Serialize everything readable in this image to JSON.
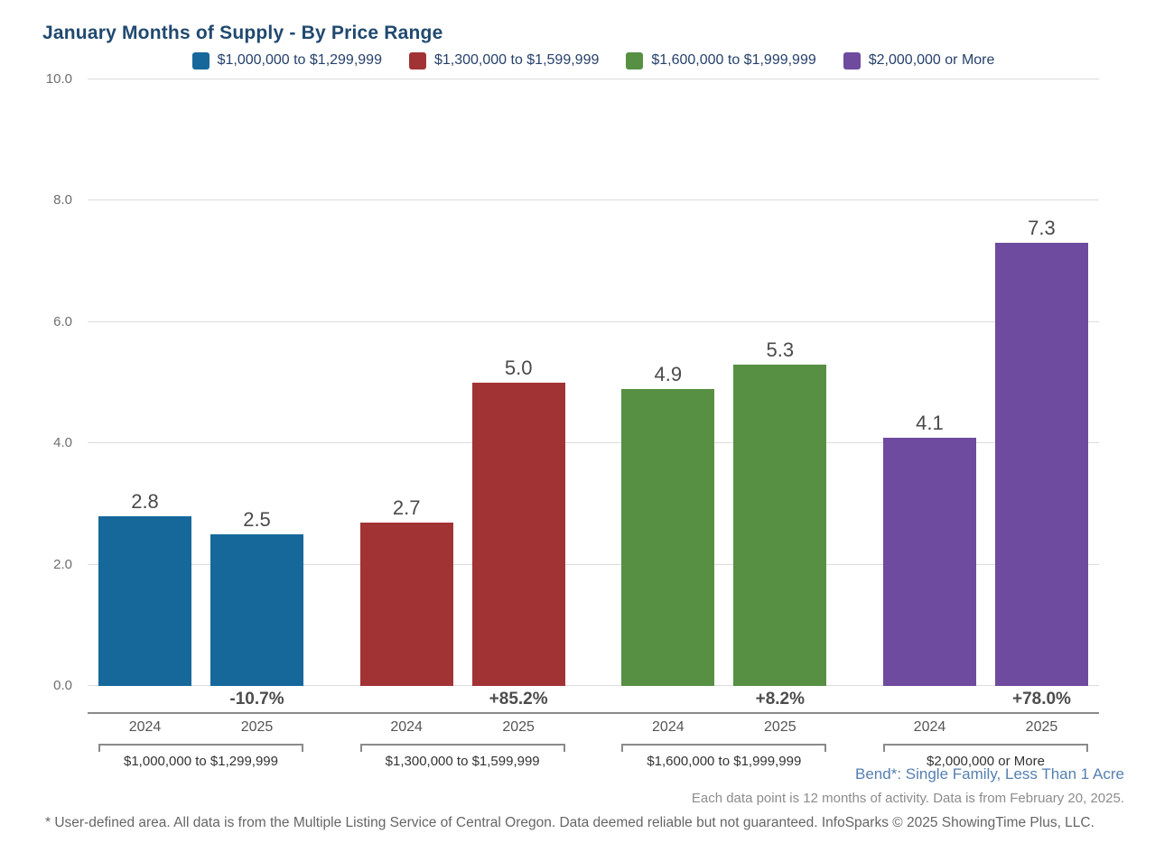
{
  "chart_data": {
    "type": "bar",
    "title": "January Months of Supply - By Price Range",
    "ylabel": "",
    "xlabel": "",
    "ylim": [
      0,
      10
    ],
    "yticks": [
      "0.0",
      "2.0",
      "4.0",
      "6.0",
      "8.0",
      "10.0"
    ],
    "grid": true,
    "legend_position": "top",
    "x_years": [
      "2024",
      "2025"
    ],
    "groups": [
      {
        "label": "$1,000,000 to $1,299,999",
        "color": "#16689B",
        "values": [
          2.8,
          2.5
        ],
        "value_labels": [
          "2.8",
          "2.5"
        ],
        "change": "-10.7%"
      },
      {
        "label": "$1,300,000 to $1,599,999",
        "color": "#A23335",
        "values": [
          2.7,
          5.0
        ],
        "value_labels": [
          "2.7",
          "5.0"
        ],
        "change": "+85.2%"
      },
      {
        "label": "$1,600,000 to $1,999,999",
        "color": "#579043",
        "values": [
          4.9,
          5.3
        ],
        "value_labels": [
          "4.9",
          "5.3"
        ],
        "change": "+8.2%"
      },
      {
        "label": "$2,000,000 or More",
        "color": "#6E4B9E",
        "values": [
          4.1,
          7.3
        ],
        "value_labels": [
          "4.1",
          "7.3"
        ],
        "change": "+78.0%"
      }
    ]
  },
  "notes": {
    "area": "Bend*: Single Family, Less Than 1 Acre",
    "data_note": "Each data point is 12 months of activity. Data is from February 20, 2025.",
    "footer": "* User-defined area. All data is from the Multiple Listing Service of Central Oregon. Data deemed reliable but not guaranteed. InfoSparks © 2025 ShowingTime Plus, LLC."
  }
}
